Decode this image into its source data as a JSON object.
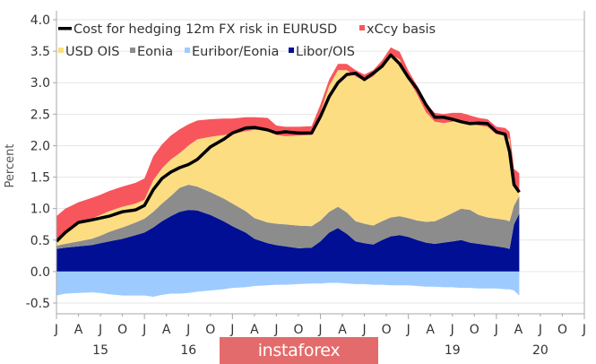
{
  "chart_data": {
    "type": "area",
    "title": "",
    "xlabel": "",
    "ylabel": "Percent",
    "ylim": [
      -0.5,
      4.0
    ],
    "xlim": [
      2015.0,
      2021.0
    ],
    "yticks": [
      "4.0",
      "3.5",
      "3.0",
      "2.5",
      "2.0",
      "1.5",
      "1.0",
      "0.5",
      "0.0",
      "-0.5"
    ],
    "ytick_values": [
      4.0,
      3.5,
      3.0,
      2.5,
      2.0,
      1.5,
      1.0,
      0.5,
      0.0,
      -0.5
    ],
    "xticks_months": [
      "J",
      "A",
      "J",
      "O",
      "J",
      "A",
      "J",
      "O",
      "J",
      "A",
      "J",
      "O",
      "J",
      "A",
      "J",
      "O",
      "J",
      "A",
      "J",
      "O",
      "J",
      "A",
      "J",
      "O",
      "J"
    ],
    "xtick_values": [
      2015.0,
      2015.25,
      2015.5,
      2015.75,
      2016.0,
      2016.25,
      2016.5,
      2016.75,
      2017.0,
      2017.25,
      2017.5,
      2017.75,
      2018.0,
      2018.25,
      2018.5,
      2018.75,
      2019.0,
      2019.25,
      2019.5,
      2019.75,
      2020.0,
      2020.25,
      2020.5,
      2020.75,
      2021.0
    ],
    "year_labels": [
      {
        "label": "15",
        "x": 2015.5
      },
      {
        "label": "16",
        "x": 2016.5
      },
      {
        "label": "19",
        "x": 2019.5
      },
      {
        "label": "20",
        "x": 2020.5
      }
    ],
    "grid": true,
    "legend_position": "top-left",
    "x": [
      2015.0,
      2015.1,
      2015.25,
      2015.4,
      2015.5,
      2015.6,
      2015.75,
      2015.9,
      2016.0,
      2016.1,
      2016.2,
      2016.3,
      2016.4,
      2016.5,
      2016.6,
      2016.75,
      2016.9,
      2017.0,
      2017.15,
      2017.25,
      2017.4,
      2017.5,
      2017.6,
      2017.75,
      2017.9,
      2018.0,
      2018.1,
      2018.2,
      2018.3,
      2018.4,
      2018.5,
      2018.6,
      2018.7,
      2018.8,
      2018.9,
      2019.0,
      2019.1,
      2019.2,
      2019.3,
      2019.4,
      2019.5,
      2019.6,
      2019.7,
      2019.8,
      2019.9,
      2020.0,
      2020.1,
      2020.15,
      2020.2,
      2020.26
    ],
    "series": [
      {
        "name": "Libor/OIS",
        "color": "#000f94",
        "kind": "stack",
        "values": [
          0.36,
          0.38,
          0.4,
          0.42,
          0.45,
          0.48,
          0.52,
          0.58,
          0.62,
          0.7,
          0.8,
          0.88,
          0.95,
          0.98,
          0.97,
          0.9,
          0.8,
          0.72,
          0.62,
          0.52,
          0.45,
          0.42,
          0.4,
          0.37,
          0.38,
          0.48,
          0.62,
          0.69,
          0.6,
          0.48,
          0.45,
          0.43,
          0.5,
          0.56,
          0.58,
          0.55,
          0.5,
          0.46,
          0.44,
          0.46,
          0.48,
          0.5,
          0.46,
          0.44,
          0.42,
          0.4,
          0.38,
          0.36,
          0.75,
          0.92
        ]
      },
      {
        "name": "Eonia",
        "color": "#8c8c8c",
        "kind": "stack",
        "values": [
          0.05,
          0.06,
          0.08,
          0.1,
          0.12,
          0.15,
          0.18,
          0.2,
          0.22,
          0.25,
          0.28,
          0.32,
          0.38,
          0.4,
          0.38,
          0.36,
          0.36,
          0.36,
          0.34,
          0.33,
          0.33,
          0.34,
          0.35,
          0.36,
          0.34,
          0.33,
          0.33,
          0.34,
          0.34,
          0.32,
          0.31,
          0.3,
          0.3,
          0.3,
          0.3,
          0.3,
          0.31,
          0.33,
          0.36,
          0.4,
          0.45,
          0.5,
          0.52,
          0.46,
          0.44,
          0.44,
          0.44,
          0.44,
          0.3,
          0.28
        ]
      },
      {
        "name": "USD OIS",
        "color": "#fddd82",
        "kind": "stack",
        "values": [
          0.07,
          0.16,
          0.28,
          0.32,
          0.33,
          0.33,
          0.33,
          0.3,
          0.3,
          0.5,
          0.56,
          0.58,
          0.55,
          0.62,
          0.75,
          0.88,
          1.01,
          1.1,
          1.27,
          1.4,
          1.48,
          1.41,
          1.4,
          1.43,
          1.45,
          1.72,
          2.0,
          2.17,
          2.26,
          2.3,
          2.27,
          2.37,
          2.45,
          2.58,
          2.49,
          2.2,
          2.0,
          1.74,
          1.58,
          1.5,
          1.45,
          1.4,
          1.38,
          1.42,
          1.44,
          1.34,
          1.34,
          1.3,
          0.33,
          0.06
        ]
      },
      {
        "name": "xCcy basis",
        "color": "#f7565c",
        "kind": "stack",
        "values": [
          0.4,
          0.4,
          0.34,
          0.33,
          0.32,
          0.32,
          0.32,
          0.33,
          0.34,
          0.38,
          0.38,
          0.38,
          0.38,
          0.34,
          0.3,
          0.28,
          0.26,
          0.25,
          0.22,
          0.2,
          0.18,
          0.15,
          0.15,
          0.14,
          0.14,
          0.12,
          0.1,
          0.1,
          0.1,
          0.1,
          0.1,
          0.1,
          0.1,
          0.12,
          0.12,
          0.14,
          0.14,
          0.14,
          0.14,
          0.14,
          0.14,
          0.12,
          0.12,
          0.12,
          0.12,
          0.12,
          0.12,
          0.12,
          0.25,
          0.3
        ]
      },
      {
        "name": "Euribor/Eonia",
        "color": "#9ecbff",
        "kind": "negative",
        "values": [
          -0.38,
          -0.35,
          -0.34,
          -0.33,
          -0.34,
          -0.36,
          -0.38,
          -0.38,
          -0.38,
          -0.4,
          -0.37,
          -0.35,
          -0.35,
          -0.34,
          -0.32,
          -0.3,
          -0.28,
          -0.26,
          -0.25,
          -0.23,
          -0.22,
          -0.21,
          -0.21,
          -0.2,
          -0.19,
          -0.19,
          -0.18,
          -0.18,
          -0.19,
          -0.2,
          -0.2,
          -0.21,
          -0.21,
          -0.22,
          -0.22,
          -0.22,
          -0.23,
          -0.24,
          -0.24,
          -0.25,
          -0.25,
          -0.26,
          -0.26,
          -0.27,
          -0.27,
          -0.27,
          -0.28,
          -0.28,
          -0.3,
          -0.38
        ]
      },
      {
        "name": "Cost for hedging 12m FX risk in EURUSD",
        "color": "#000000",
        "kind": "line",
        "values": [
          0.48,
          0.62,
          0.78,
          0.82,
          0.85,
          0.88,
          0.95,
          0.98,
          1.05,
          1.3,
          1.48,
          1.58,
          1.65,
          1.7,
          1.78,
          1.98,
          2.1,
          2.2,
          2.28,
          2.29,
          2.25,
          2.2,
          2.22,
          2.2,
          2.2,
          2.46,
          2.78,
          3.0,
          3.13,
          3.15,
          3.05,
          3.15,
          3.26,
          3.44,
          3.3,
          3.08,
          2.9,
          2.65,
          2.45,
          2.45,
          2.42,
          2.38,
          2.35,
          2.36,
          2.35,
          2.22,
          2.18,
          1.9,
          1.38,
          1.26
        ]
      }
    ],
    "legend": [
      {
        "label": "Cost for hedging 12m FX risk in EURUSD",
        "color": "#000000",
        "marker": "line"
      },
      {
        "label": "xCcy basis",
        "color": "#f7565c",
        "marker": "square"
      },
      {
        "label": "USD OIS",
        "color": "#fddd82",
        "marker": "square"
      },
      {
        "label": "Eonia",
        "color": "#8c8c8c",
        "marker": "square"
      },
      {
        "label": "Euribor/Eonia",
        "color": "#9ecbff",
        "marker": "square"
      },
      {
        "label": "Libor/OIS",
        "color": "#000f94",
        "marker": "square"
      }
    ]
  },
  "watermark": {
    "text": "instaforex",
    "color": "#e46b6b"
  }
}
